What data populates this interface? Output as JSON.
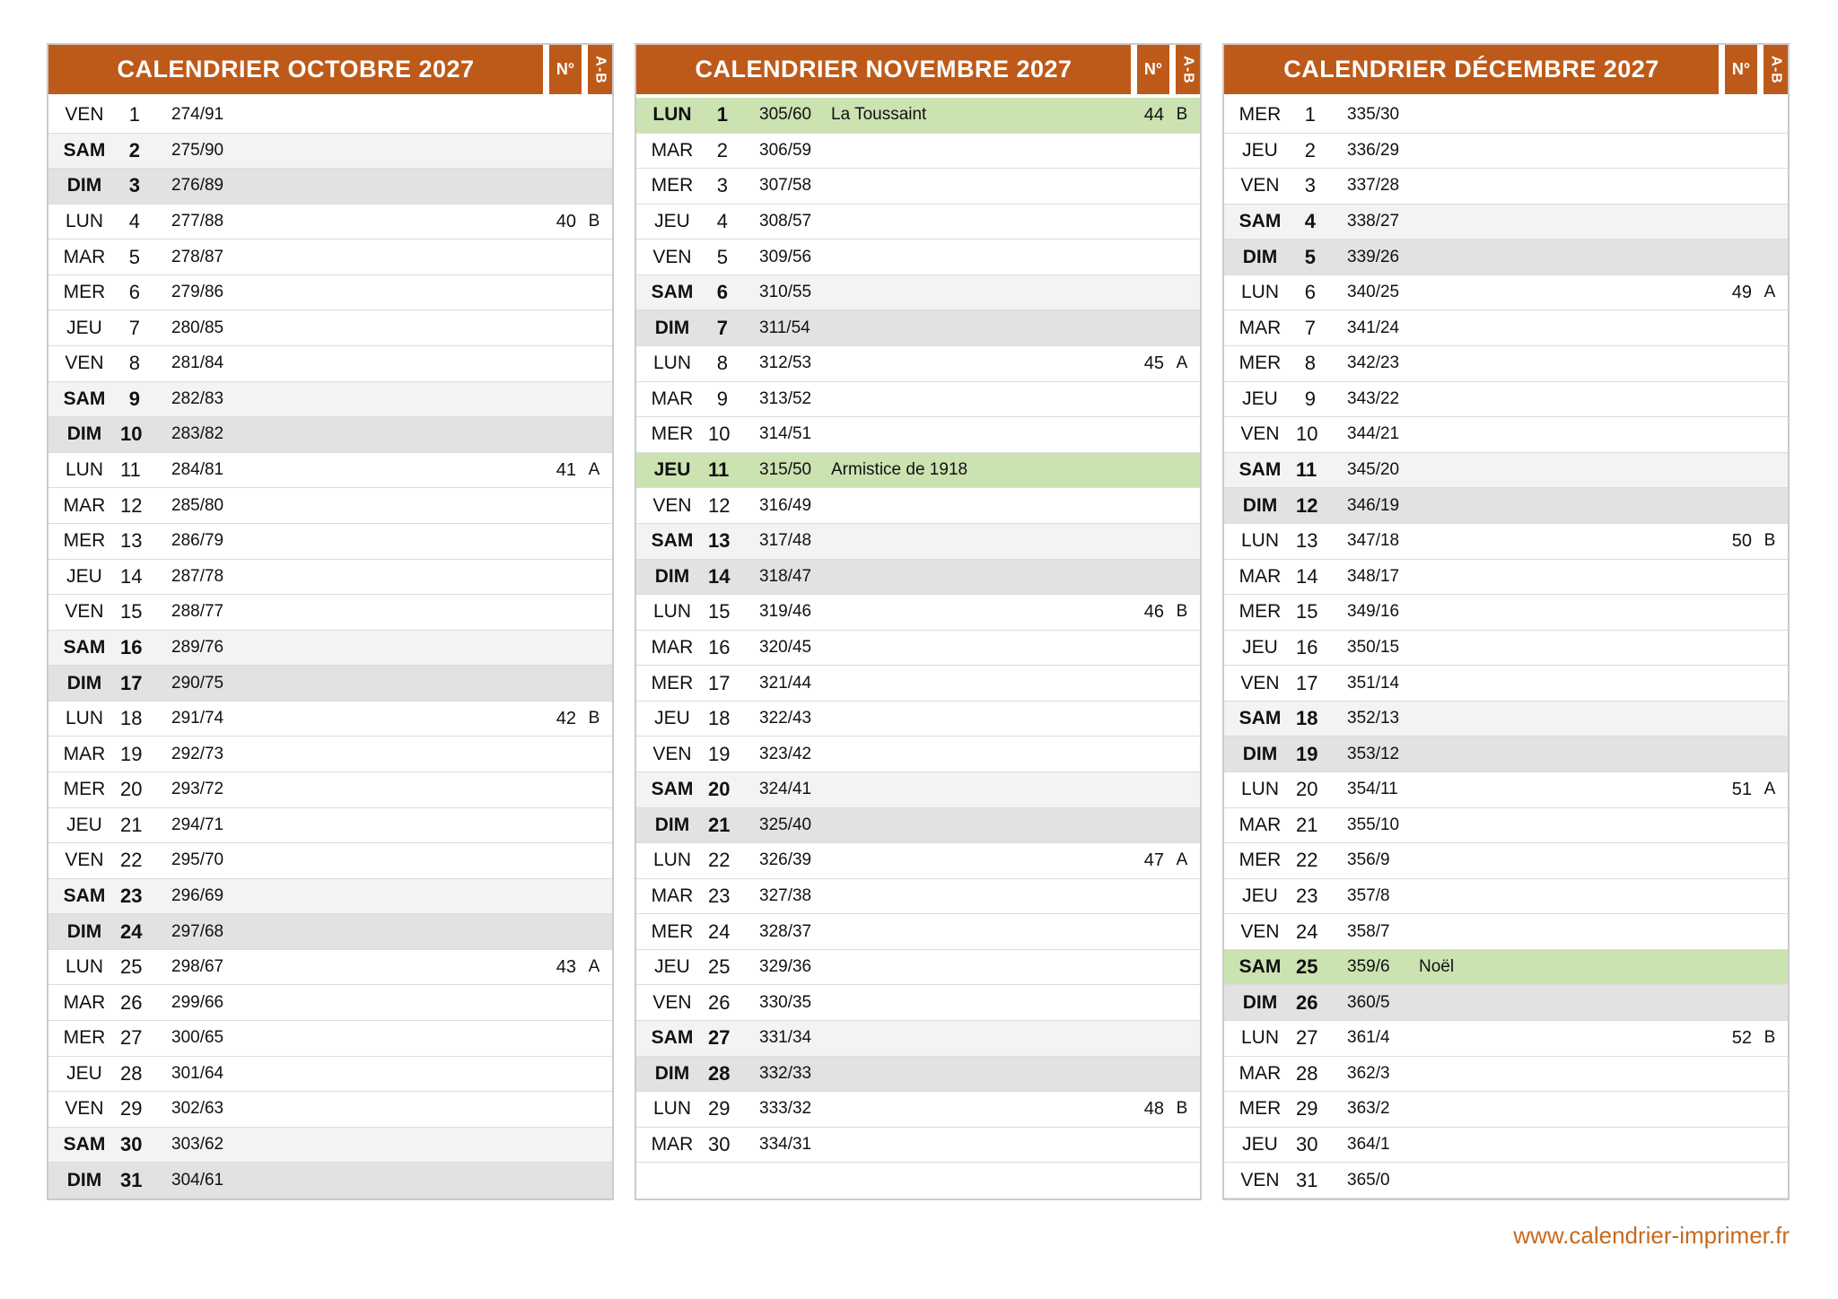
{
  "page": {
    "footer_link": "www.calendrier-imprimer.fr"
  },
  "colors": {
    "header_bg": "#BE5A19",
    "holiday_bg": "#CBE2B1",
    "saturday_bg": "#F3F3F3",
    "sunday_bg": "#E2E2E2",
    "footer_text": "#C76B1E"
  },
  "column_headers": {
    "week_number": "N°",
    "ab": "A-B"
  },
  "months": [
    {
      "title": "CALENDRIER OCTOBRE 2027",
      "rows": [
        {
          "dow": "VEN",
          "day": "1",
          "doy": "274/91",
          "holiday": "",
          "week": "",
          "ab": "",
          "type": "normal"
        },
        {
          "dow": "SAM",
          "day": "2",
          "doy": "275/90",
          "holiday": "",
          "week": "",
          "ab": "",
          "type": "saturday"
        },
        {
          "dow": "DIM",
          "day": "3",
          "doy": "276/89",
          "holiday": "",
          "week": "",
          "ab": "",
          "type": "sunday"
        },
        {
          "dow": "LUN",
          "day": "4",
          "doy": "277/88",
          "holiday": "",
          "week": "40",
          "ab": "B",
          "type": "normal"
        },
        {
          "dow": "MAR",
          "day": "5",
          "doy": "278/87",
          "holiday": "",
          "week": "",
          "ab": "",
          "type": "normal"
        },
        {
          "dow": "MER",
          "day": "6",
          "doy": "279/86",
          "holiday": "",
          "week": "",
          "ab": "",
          "type": "normal"
        },
        {
          "dow": "JEU",
          "day": "7",
          "doy": "280/85",
          "holiday": "",
          "week": "",
          "ab": "",
          "type": "normal"
        },
        {
          "dow": "VEN",
          "day": "8",
          "doy": "281/84",
          "holiday": "",
          "week": "",
          "ab": "",
          "type": "normal"
        },
        {
          "dow": "SAM",
          "day": "9",
          "doy": "282/83",
          "holiday": "",
          "week": "",
          "ab": "",
          "type": "saturday"
        },
        {
          "dow": "DIM",
          "day": "10",
          "doy": "283/82",
          "holiday": "",
          "week": "",
          "ab": "",
          "type": "sunday"
        },
        {
          "dow": "LUN",
          "day": "11",
          "doy": "284/81",
          "holiday": "",
          "week": "41",
          "ab": "A",
          "type": "normal"
        },
        {
          "dow": "MAR",
          "day": "12",
          "doy": "285/80",
          "holiday": "",
          "week": "",
          "ab": "",
          "type": "normal"
        },
        {
          "dow": "MER",
          "day": "13",
          "doy": "286/79",
          "holiday": "",
          "week": "",
          "ab": "",
          "type": "normal"
        },
        {
          "dow": "JEU",
          "day": "14",
          "doy": "287/78",
          "holiday": "",
          "week": "",
          "ab": "",
          "type": "normal"
        },
        {
          "dow": "VEN",
          "day": "15",
          "doy": "288/77",
          "holiday": "",
          "week": "",
          "ab": "",
          "type": "normal"
        },
        {
          "dow": "SAM",
          "day": "16",
          "doy": "289/76",
          "holiday": "",
          "week": "",
          "ab": "",
          "type": "saturday"
        },
        {
          "dow": "DIM",
          "day": "17",
          "doy": "290/75",
          "holiday": "",
          "week": "",
          "ab": "",
          "type": "sunday"
        },
        {
          "dow": "LUN",
          "day": "18",
          "doy": "291/74",
          "holiday": "",
          "week": "42",
          "ab": "B",
          "type": "normal"
        },
        {
          "dow": "MAR",
          "day": "19",
          "doy": "292/73",
          "holiday": "",
          "week": "",
          "ab": "",
          "type": "normal"
        },
        {
          "dow": "MER",
          "day": "20",
          "doy": "293/72",
          "holiday": "",
          "week": "",
          "ab": "",
          "type": "normal"
        },
        {
          "dow": "JEU",
          "day": "21",
          "doy": "294/71",
          "holiday": "",
          "week": "",
          "ab": "",
          "type": "normal"
        },
        {
          "dow": "VEN",
          "day": "22",
          "doy": "295/70",
          "holiday": "",
          "week": "",
          "ab": "",
          "type": "normal"
        },
        {
          "dow": "SAM",
          "day": "23",
          "doy": "296/69",
          "holiday": "",
          "week": "",
          "ab": "",
          "type": "saturday"
        },
        {
          "dow": "DIM",
          "day": "24",
          "doy": "297/68",
          "holiday": "",
          "week": "",
          "ab": "",
          "type": "sunday"
        },
        {
          "dow": "LUN",
          "day": "25",
          "doy": "298/67",
          "holiday": "",
          "week": "43",
          "ab": "A",
          "type": "normal"
        },
        {
          "dow": "MAR",
          "day": "26",
          "doy": "299/66",
          "holiday": "",
          "week": "",
          "ab": "",
          "type": "normal"
        },
        {
          "dow": "MER",
          "day": "27",
          "doy": "300/65",
          "holiday": "",
          "week": "",
          "ab": "",
          "type": "normal"
        },
        {
          "dow": "JEU",
          "day": "28",
          "doy": "301/64",
          "holiday": "",
          "week": "",
          "ab": "",
          "type": "normal"
        },
        {
          "dow": "VEN",
          "day": "29",
          "doy": "302/63",
          "holiday": "",
          "week": "",
          "ab": "",
          "type": "normal"
        },
        {
          "dow": "SAM",
          "day": "30",
          "doy": "303/62",
          "holiday": "",
          "week": "",
          "ab": "",
          "type": "saturday"
        },
        {
          "dow": "DIM",
          "day": "31",
          "doy": "304/61",
          "holiday": "",
          "week": "",
          "ab": "",
          "type": "sunday"
        }
      ]
    },
    {
      "title": "CALENDRIER NOVEMBRE 2027",
      "rows": [
        {
          "dow": "LUN",
          "day": "1",
          "doy": "305/60",
          "holiday": "La Toussaint",
          "week": "44",
          "ab": "B",
          "type": "holiday"
        },
        {
          "dow": "MAR",
          "day": "2",
          "doy": "306/59",
          "holiday": "",
          "week": "",
          "ab": "",
          "type": "normal"
        },
        {
          "dow": "MER",
          "day": "3",
          "doy": "307/58",
          "holiday": "",
          "week": "",
          "ab": "",
          "type": "normal"
        },
        {
          "dow": "JEU",
          "day": "4",
          "doy": "308/57",
          "holiday": "",
          "week": "",
          "ab": "",
          "type": "normal"
        },
        {
          "dow": "VEN",
          "day": "5",
          "doy": "309/56",
          "holiday": "",
          "week": "",
          "ab": "",
          "type": "normal"
        },
        {
          "dow": "SAM",
          "day": "6",
          "doy": "310/55",
          "holiday": "",
          "week": "",
          "ab": "",
          "type": "saturday"
        },
        {
          "dow": "DIM",
          "day": "7",
          "doy": "311/54",
          "holiday": "",
          "week": "",
          "ab": "",
          "type": "sunday"
        },
        {
          "dow": "LUN",
          "day": "8",
          "doy": "312/53",
          "holiday": "",
          "week": "45",
          "ab": "A",
          "type": "normal"
        },
        {
          "dow": "MAR",
          "day": "9",
          "doy": "313/52",
          "holiday": "",
          "week": "",
          "ab": "",
          "type": "normal"
        },
        {
          "dow": "MER",
          "day": "10",
          "doy": "314/51",
          "holiday": "",
          "week": "",
          "ab": "",
          "type": "normal"
        },
        {
          "dow": "JEU",
          "day": "11",
          "doy": "315/50",
          "holiday": "Armistice de 1918",
          "week": "",
          "ab": "",
          "type": "holiday"
        },
        {
          "dow": "VEN",
          "day": "12",
          "doy": "316/49",
          "holiday": "",
          "week": "",
          "ab": "",
          "type": "normal"
        },
        {
          "dow": "SAM",
          "day": "13",
          "doy": "317/48",
          "holiday": "",
          "week": "",
          "ab": "",
          "type": "saturday"
        },
        {
          "dow": "DIM",
          "day": "14",
          "doy": "318/47",
          "holiday": "",
          "week": "",
          "ab": "",
          "type": "sunday"
        },
        {
          "dow": "LUN",
          "day": "15",
          "doy": "319/46",
          "holiday": "",
          "week": "46",
          "ab": "B",
          "type": "normal"
        },
        {
          "dow": "MAR",
          "day": "16",
          "doy": "320/45",
          "holiday": "",
          "week": "",
          "ab": "",
          "type": "normal"
        },
        {
          "dow": "MER",
          "day": "17",
          "doy": "321/44",
          "holiday": "",
          "week": "",
          "ab": "",
          "type": "normal"
        },
        {
          "dow": "JEU",
          "day": "18",
          "doy": "322/43",
          "holiday": "",
          "week": "",
          "ab": "",
          "type": "normal"
        },
        {
          "dow": "VEN",
          "day": "19",
          "doy": "323/42",
          "holiday": "",
          "week": "",
          "ab": "",
          "type": "normal"
        },
        {
          "dow": "SAM",
          "day": "20",
          "doy": "324/41",
          "holiday": "",
          "week": "",
          "ab": "",
          "type": "saturday"
        },
        {
          "dow": "DIM",
          "day": "21",
          "doy": "325/40",
          "holiday": "",
          "week": "",
          "ab": "",
          "type": "sunday"
        },
        {
          "dow": "LUN",
          "day": "22",
          "doy": "326/39",
          "holiday": "",
          "week": "47",
          "ab": "A",
          "type": "normal"
        },
        {
          "dow": "MAR",
          "day": "23",
          "doy": "327/38",
          "holiday": "",
          "week": "",
          "ab": "",
          "type": "normal"
        },
        {
          "dow": "MER",
          "day": "24",
          "doy": "328/37",
          "holiday": "",
          "week": "",
          "ab": "",
          "type": "normal"
        },
        {
          "dow": "JEU",
          "day": "25",
          "doy": "329/36",
          "holiday": "",
          "week": "",
          "ab": "",
          "type": "normal"
        },
        {
          "dow": "VEN",
          "day": "26",
          "doy": "330/35",
          "holiday": "",
          "week": "",
          "ab": "",
          "type": "normal"
        },
        {
          "dow": "SAM",
          "day": "27",
          "doy": "331/34",
          "holiday": "",
          "week": "",
          "ab": "",
          "type": "saturday"
        },
        {
          "dow": "DIM",
          "day": "28",
          "doy": "332/33",
          "holiday": "",
          "week": "",
          "ab": "",
          "type": "sunday"
        },
        {
          "dow": "LUN",
          "day": "29",
          "doy": "333/32",
          "holiday": "",
          "week": "48",
          "ab": "B",
          "type": "normal"
        },
        {
          "dow": "MAR",
          "day": "30",
          "doy": "334/31",
          "holiday": "",
          "week": "",
          "ab": "",
          "type": "normal"
        }
      ]
    },
    {
      "title": "CALENDRIER DÉCEMBRE 2027",
      "rows": [
        {
          "dow": "MER",
          "day": "1",
          "doy": "335/30",
          "holiday": "",
          "week": "",
          "ab": "",
          "type": "normal"
        },
        {
          "dow": "JEU",
          "day": "2",
          "doy": "336/29",
          "holiday": "",
          "week": "",
          "ab": "",
          "type": "normal"
        },
        {
          "dow": "VEN",
          "day": "3",
          "doy": "337/28",
          "holiday": "",
          "week": "",
          "ab": "",
          "type": "normal"
        },
        {
          "dow": "SAM",
          "day": "4",
          "doy": "338/27",
          "holiday": "",
          "week": "",
          "ab": "",
          "type": "saturday"
        },
        {
          "dow": "DIM",
          "day": "5",
          "doy": "339/26",
          "holiday": "",
          "week": "",
          "ab": "",
          "type": "sunday"
        },
        {
          "dow": "LUN",
          "day": "6",
          "doy": "340/25",
          "holiday": "",
          "week": "49",
          "ab": "A",
          "type": "normal"
        },
        {
          "dow": "MAR",
          "day": "7",
          "doy": "341/24",
          "holiday": "",
          "week": "",
          "ab": "",
          "type": "normal"
        },
        {
          "dow": "MER",
          "day": "8",
          "doy": "342/23",
          "holiday": "",
          "week": "",
          "ab": "",
          "type": "normal"
        },
        {
          "dow": "JEU",
          "day": "9",
          "doy": "343/22",
          "holiday": "",
          "week": "",
          "ab": "",
          "type": "normal"
        },
        {
          "dow": "VEN",
          "day": "10",
          "doy": "344/21",
          "holiday": "",
          "week": "",
          "ab": "",
          "type": "normal"
        },
        {
          "dow": "SAM",
          "day": "11",
          "doy": "345/20",
          "holiday": "",
          "week": "",
          "ab": "",
          "type": "saturday"
        },
        {
          "dow": "DIM",
          "day": "12",
          "doy": "346/19",
          "holiday": "",
          "week": "",
          "ab": "",
          "type": "sunday"
        },
        {
          "dow": "LUN",
          "day": "13",
          "doy": "347/18",
          "holiday": "",
          "week": "50",
          "ab": "B",
          "type": "normal"
        },
        {
          "dow": "MAR",
          "day": "14",
          "doy": "348/17",
          "holiday": "",
          "week": "",
          "ab": "",
          "type": "normal"
        },
        {
          "dow": "MER",
          "day": "15",
          "doy": "349/16",
          "holiday": "",
          "week": "",
          "ab": "",
          "type": "normal"
        },
        {
          "dow": "JEU",
          "day": "16",
          "doy": "350/15",
          "holiday": "",
          "week": "",
          "ab": "",
          "type": "normal"
        },
        {
          "dow": "VEN",
          "day": "17",
          "doy": "351/14",
          "holiday": "",
          "week": "",
          "ab": "",
          "type": "normal"
        },
        {
          "dow": "SAM",
          "day": "18",
          "doy": "352/13",
          "holiday": "",
          "week": "",
          "ab": "",
          "type": "saturday"
        },
        {
          "dow": "DIM",
          "day": "19",
          "doy": "353/12",
          "holiday": "",
          "week": "",
          "ab": "",
          "type": "sunday"
        },
        {
          "dow": "LUN",
          "day": "20",
          "doy": "354/11",
          "holiday": "",
          "week": "51",
          "ab": "A",
          "type": "normal"
        },
        {
          "dow": "MAR",
          "day": "21",
          "doy": "355/10",
          "holiday": "",
          "week": "",
          "ab": "",
          "type": "normal"
        },
        {
          "dow": "MER",
          "day": "22",
          "doy": "356/9",
          "holiday": "",
          "week": "",
          "ab": "",
          "type": "normal"
        },
        {
          "dow": "JEU",
          "day": "23",
          "doy": "357/8",
          "holiday": "",
          "week": "",
          "ab": "",
          "type": "normal"
        },
        {
          "dow": "VEN",
          "day": "24",
          "doy": "358/7",
          "holiday": "",
          "week": "",
          "ab": "",
          "type": "normal"
        },
        {
          "dow": "SAM",
          "day": "25",
          "doy": "359/6",
          "holiday": "Noël",
          "week": "",
          "ab": "",
          "type": "holiday"
        },
        {
          "dow": "DIM",
          "day": "26",
          "doy": "360/5",
          "holiday": "",
          "week": "",
          "ab": "",
          "type": "sunday"
        },
        {
          "dow": "LUN",
          "day": "27",
          "doy": "361/4",
          "holiday": "",
          "week": "52",
          "ab": "B",
          "type": "normal"
        },
        {
          "dow": "MAR",
          "day": "28",
          "doy": "362/3",
          "holiday": "",
          "week": "",
          "ab": "",
          "type": "normal"
        },
        {
          "dow": "MER",
          "day": "29",
          "doy": "363/2",
          "holiday": "",
          "week": "",
          "ab": "",
          "type": "normal"
        },
        {
          "dow": "JEU",
          "day": "30",
          "doy": "364/1",
          "holiday": "",
          "week": "",
          "ab": "",
          "type": "normal"
        },
        {
          "dow": "VEN",
          "day": "31",
          "doy": "365/0",
          "holiday": "",
          "week": "",
          "ab": "",
          "type": "normal"
        }
      ]
    }
  ]
}
